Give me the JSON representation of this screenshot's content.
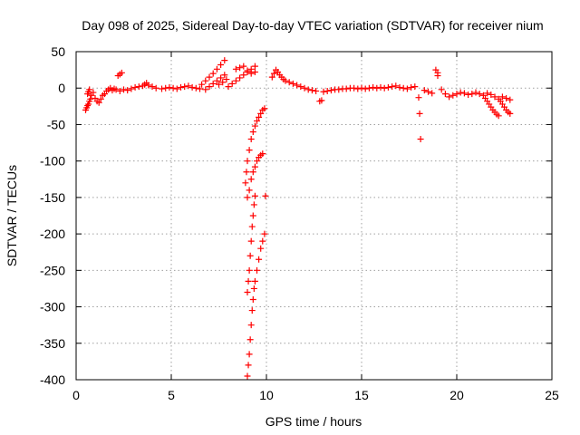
{
  "chart_data": {
    "type": "scatter",
    "title": "Day 098 of 2025, Sidereal Day-to-day VTEC variation (SDTVAR) for receiver nium",
    "xlabel": "GPS time / hours",
    "ylabel": "SDTVAR / TECUs",
    "xlim": [
      0,
      25
    ],
    "ylim": [
      -400,
      50
    ],
    "xticks": [
      0,
      5,
      10,
      15,
      20,
      25
    ],
    "yticks": [
      50,
      0,
      -50,
      -100,
      -150,
      -200,
      -250,
      -300,
      -350,
      -400
    ],
    "grid": true,
    "marker": "+",
    "color": "#ff0000",
    "series": [
      {
        "name": "SDTVAR",
        "points": [
          [
            0.5,
            -30
          ],
          [
            0.55,
            -27
          ],
          [
            0.6,
            -24
          ],
          [
            0.65,
            -22
          ],
          [
            0.7,
            -18
          ],
          [
            0.75,
            -15
          ],
          [
            0.6,
            -8
          ],
          [
            0.65,
            -5
          ],
          [
            0.7,
            -2
          ],
          [
            0.8,
            -10
          ],
          [
            0.9,
            -6
          ],
          [
            1.0,
            -14
          ],
          [
            1.1,
            -18
          ],
          [
            1.2,
            -20
          ],
          [
            1.3,
            -15
          ],
          [
            1.4,
            -10
          ],
          [
            1.5,
            -8
          ],
          [
            1.6,
            -4
          ],
          [
            1.7,
            -2
          ],
          [
            1.8,
            0
          ],
          [
            1.9,
            -3
          ],
          [
            2.0,
            -1
          ],
          [
            2.2,
            17
          ],
          [
            2.3,
            19
          ],
          [
            2.4,
            21
          ],
          [
            2.1,
            -2
          ],
          [
            2.3,
            -4
          ],
          [
            2.5,
            -2
          ],
          [
            2.7,
            -3
          ],
          [
            2.9,
            -1
          ],
          [
            3.1,
            1
          ],
          [
            3.3,
            2
          ],
          [
            3.5,
            3
          ],
          [
            3.6,
            5
          ],
          [
            3.7,
            7
          ],
          [
            3.8,
            4
          ],
          [
            4.0,
            2
          ],
          [
            4.2,
            0
          ],
          [
            4.5,
            -1
          ],
          [
            4.7,
            0
          ],
          [
            4.9,
            1
          ],
          [
            5.1,
            0
          ],
          [
            5.3,
            -1
          ],
          [
            5.5,
            1
          ],
          [
            5.7,
            2
          ],
          [
            5.9,
            3
          ],
          [
            6.1,
            1
          ],
          [
            6.3,
            0
          ],
          [
            6.5,
            -1
          ],
          [
            6.6,
            5
          ],
          [
            6.8,
            10
          ],
          [
            7.0,
            15
          ],
          [
            7.2,
            20
          ],
          [
            7.4,
            26
          ],
          [
            7.6,
            32
          ],
          [
            7.8,
            38
          ],
          [
            6.8,
            -2
          ],
          [
            7.0,
            2
          ],
          [
            7.2,
            6
          ],
          [
            7.4,
            10
          ],
          [
            7.6,
            14
          ],
          [
            7.8,
            18
          ],
          [
            7.5,
            5
          ],
          [
            7.7,
            8
          ],
          [
            7.9,
            12
          ],
          [
            8.0,
            2
          ],
          [
            8.2,
            6
          ],
          [
            8.4,
            10
          ],
          [
            8.6,
            14
          ],
          [
            8.8,
            18
          ],
          [
            9.0,
            22
          ],
          [
            9.2,
            26
          ],
          [
            9.4,
            30
          ],
          [
            8.4,
            26
          ],
          [
            8.6,
            28
          ],
          [
            8.8,
            30
          ],
          [
            9.0,
            24
          ],
          [
            9.2,
            20
          ],
          [
            9.4,
            22
          ],
          [
            8.9,
            -130
          ],
          [
            8.95,
            -115
          ],
          [
            9.0,
            -100
          ],
          [
            9.1,
            -85
          ],
          [
            9.2,
            -70
          ],
          [
            9.3,
            -60
          ],
          [
            9.4,
            -52
          ],
          [
            9.5,
            -45
          ],
          [
            9.6,
            -40
          ],
          [
            9.7,
            -35
          ],
          [
            9.8,
            -30
          ],
          [
            9.9,
            -28
          ],
          [
            9.0,
            -150
          ],
          [
            9.1,
            -140
          ],
          [
            9.2,
            -125
          ],
          [
            9.3,
            -115
          ],
          [
            9.4,
            -108
          ],
          [
            9.5,
            -100
          ],
          [
            9.6,
            -95
          ],
          [
            9.7,
            -92
          ],
          [
            9.8,
            -90
          ],
          [
            9.0,
            -280
          ],
          [
            9.05,
            -265
          ],
          [
            9.1,
            -250
          ],
          [
            9.15,
            -230
          ],
          [
            9.2,
            -210
          ],
          [
            9.25,
            -190
          ],
          [
            9.3,
            -175
          ],
          [
            9.35,
            -160
          ],
          [
            9.4,
            -148
          ],
          [
            9.0,
            -395
          ],
          [
            9.05,
            -380
          ],
          [
            9.1,
            -365
          ],
          [
            9.15,
            -345
          ],
          [
            9.2,
            -325
          ],
          [
            9.25,
            -305
          ],
          [
            9.3,
            -290
          ],
          [
            9.35,
            -275
          ],
          [
            9.4,
            -265
          ],
          [
            9.5,
            -250
          ],
          [
            9.6,
            -235
          ],
          [
            9.7,
            -220
          ],
          [
            9.8,
            -210
          ],
          [
            9.9,
            -200
          ],
          [
            9.95,
            -148
          ],
          [
            10.3,
            15
          ],
          [
            10.4,
            20
          ],
          [
            10.5,
            25
          ],
          [
            10.6,
            22
          ],
          [
            10.7,
            18
          ],
          [
            10.8,
            15
          ],
          [
            10.9,
            12
          ],
          [
            11.0,
            10
          ],
          [
            11.2,
            8
          ],
          [
            11.4,
            6
          ],
          [
            11.6,
            4
          ],
          [
            11.8,
            2
          ],
          [
            12.0,
            0
          ],
          [
            12.2,
            -2
          ],
          [
            12.4,
            -3
          ],
          [
            12.6,
            -4
          ],
          [
            12.8,
            -18
          ],
          [
            12.9,
            -17
          ],
          [
            13.0,
            -5
          ],
          [
            13.2,
            -4
          ],
          [
            13.4,
            -3
          ],
          [
            13.6,
            -2
          ],
          [
            13.8,
            -2
          ],
          [
            14.0,
            -1
          ],
          [
            14.2,
            -1
          ],
          [
            14.4,
            0
          ],
          [
            14.6,
            0
          ],
          [
            14.8,
            -1
          ],
          [
            15.0,
            0
          ],
          [
            15.2,
            -1
          ],
          [
            15.4,
            0
          ],
          [
            15.6,
            1
          ],
          [
            15.8,
            0
          ],
          [
            16.0,
            1
          ],
          [
            16.2,
            0
          ],
          [
            16.4,
            1
          ],
          [
            16.6,
            2
          ],
          [
            16.8,
            3
          ],
          [
            17.0,
            1
          ],
          [
            17.2,
            0
          ],
          [
            17.4,
            -1
          ],
          [
            17.6,
            1
          ],
          [
            17.8,
            2
          ],
          [
            18.0,
            -13
          ],
          [
            18.05,
            -35
          ],
          [
            18.1,
            -70
          ],
          [
            18.3,
            -3
          ],
          [
            18.5,
            -5
          ],
          [
            18.7,
            -7
          ],
          [
            18.9,
            25
          ],
          [
            19.0,
            21
          ],
          [
            19.0,
            17
          ],
          [
            19.2,
            -2
          ],
          [
            19.4,
            -8
          ],
          [
            19.6,
            -12
          ],
          [
            19.8,
            -10
          ],
          [
            20.0,
            -8
          ],
          [
            20.2,
            -6
          ],
          [
            20.4,
            -7
          ],
          [
            20.6,
            -9
          ],
          [
            20.8,
            -8
          ],
          [
            21.0,
            -6
          ],
          [
            21.2,
            -8
          ],
          [
            21.4,
            -10
          ],
          [
            21.5,
            -14
          ],
          [
            21.6,
            -18
          ],
          [
            21.7,
            -22
          ],
          [
            21.8,
            -26
          ],
          [
            21.9,
            -30
          ],
          [
            22.0,
            -33
          ],
          [
            22.1,
            -36
          ],
          [
            22.2,
            -38
          ],
          [
            21.6,
            -7
          ],
          [
            21.8,
            -9
          ],
          [
            22.0,
            -12
          ],
          [
            22.2,
            -15
          ],
          [
            22.3,
            -18
          ],
          [
            22.4,
            -22
          ],
          [
            22.5,
            -26
          ],
          [
            22.6,
            -30
          ],
          [
            22.7,
            -33
          ],
          [
            22.8,
            -35
          ],
          [
            22.4,
            -12
          ],
          [
            22.6,
            -14
          ],
          [
            22.8,
            -16
          ]
        ]
      }
    ]
  }
}
